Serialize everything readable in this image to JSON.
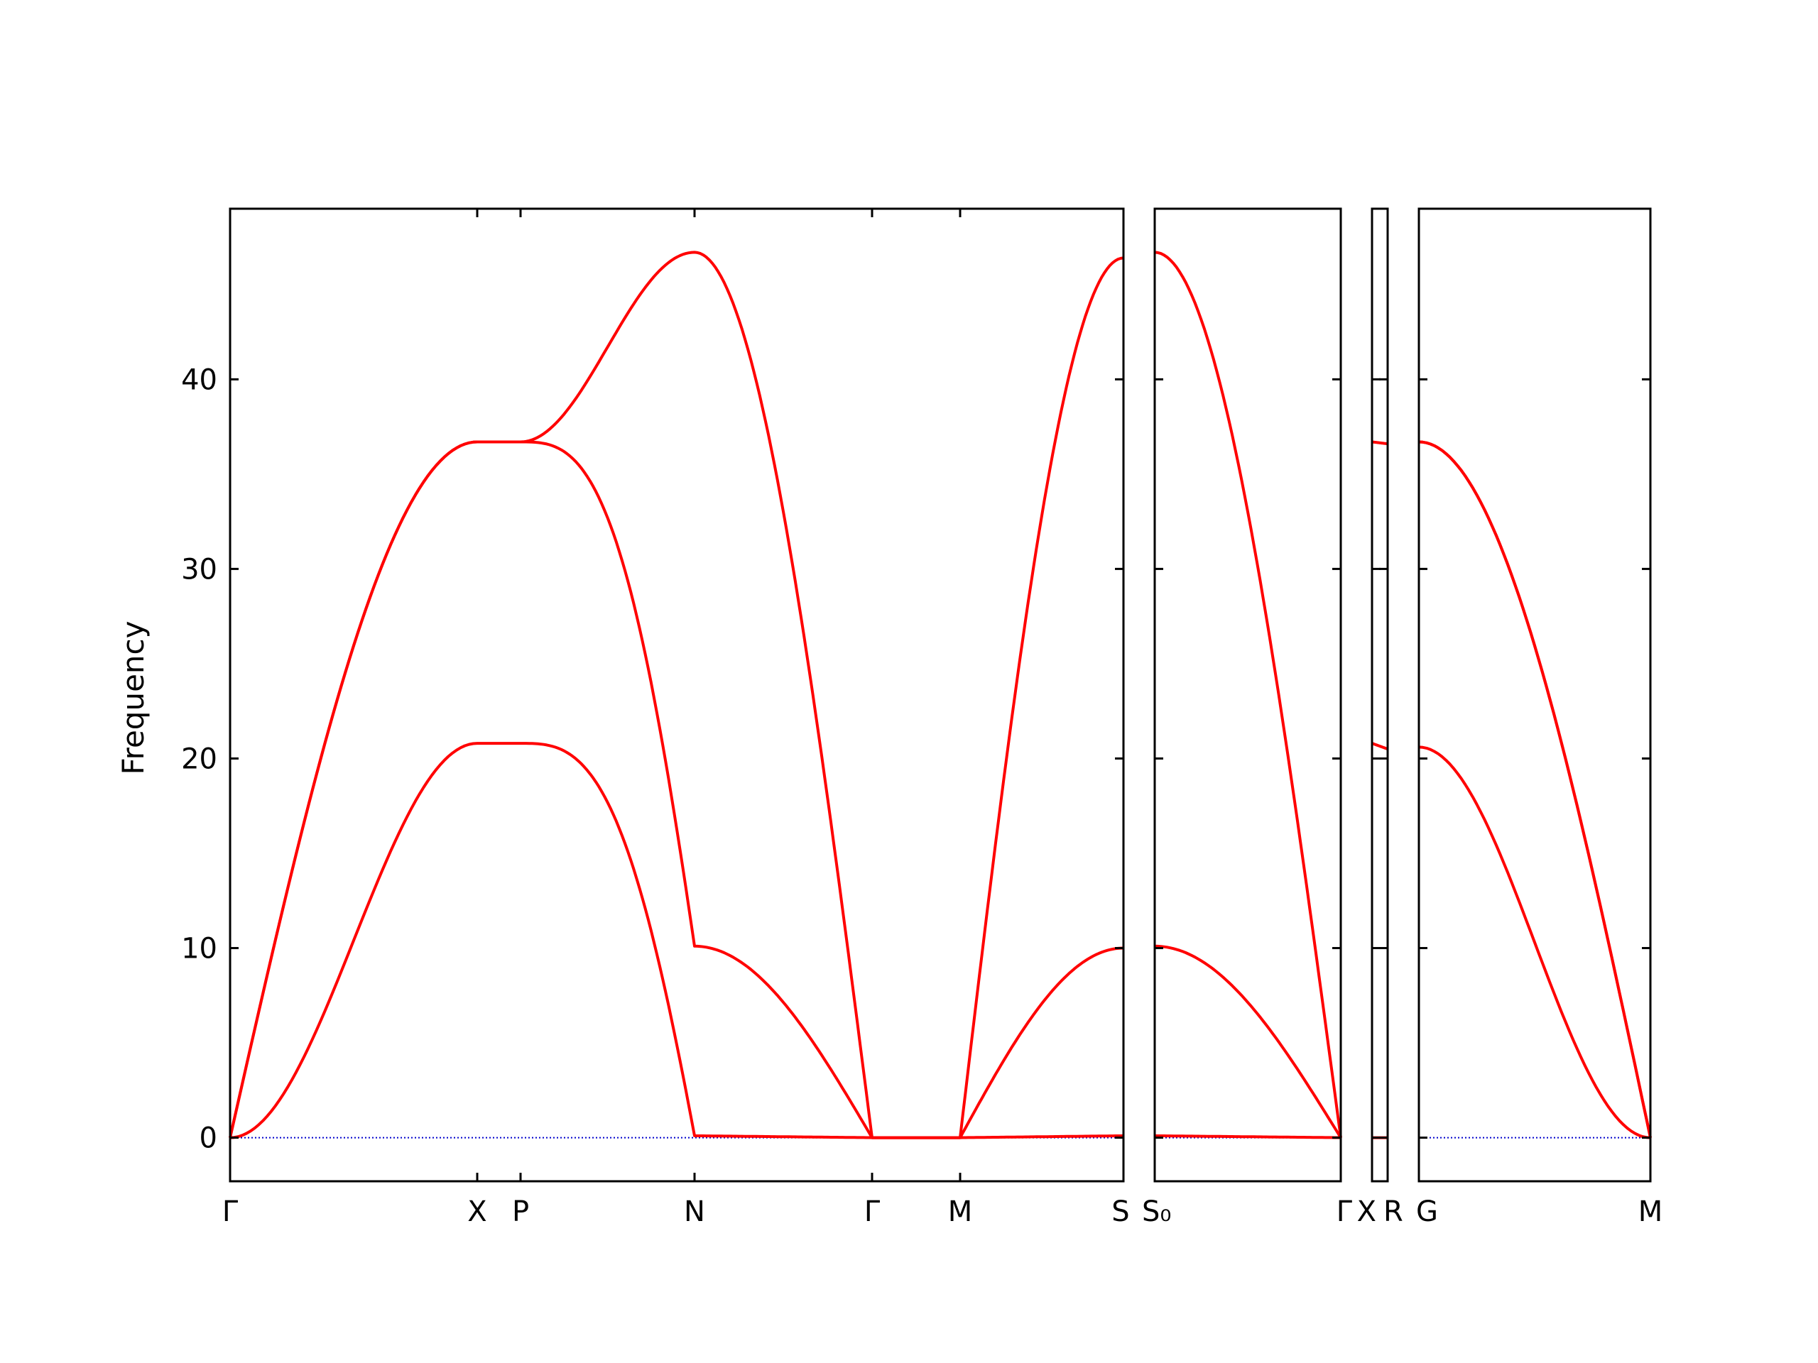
{
  "colors": {
    "band": "#ff0000",
    "zero_line": "#0000cc",
    "frame": "#000000",
    "background": "#ffffff"
  },
  "chart_data": {
    "type": "line",
    "title": "",
    "xlabel": "",
    "ylabel": "Frequency",
    "ylim": [
      -2.3,
      49
    ],
    "yticks": [
      0,
      10,
      20,
      30,
      40
    ],
    "grid": false,
    "legend": "none",
    "zero_reference_line": 0,
    "panels": [
      {
        "high_symmetry_points": [
          "Γ",
          "X",
          "P",
          "N",
          "Γ",
          "M",
          "S"
        ],
        "segments": [
          {
            "from": "Γ",
            "to": "X",
            "bands": [
              {
                "shape": "rise",
                "start": 0,
                "end": 36.7
              },
              {
                "shape": "rise",
                "start": 0,
                "end": 36.7
              },
              {
                "shape": "rise_s",
                "start": 0,
                "end": 20.8
              }
            ]
          },
          {
            "from": "X",
            "to": "P",
            "bands": [
              {
                "shape": "flat",
                "start": 36.7,
                "end": 36.7
              },
              {
                "shape": "flat",
                "start": 36.7,
                "end": 36.7
              },
              {
                "shape": "flat",
                "start": 20.8,
                "end": 20.8
              }
            ]
          },
          {
            "from": "P",
            "to": "N",
            "bands": [
              {
                "shape": "s_curve",
                "start": 36.7,
                "end": 46.7
              },
              {
                "shape": "fall_steep",
                "start": 36.7,
                "end": 10.1
              },
              {
                "shape": "fall_steep",
                "start": 20.8,
                "end": 0.1
              }
            ]
          },
          {
            "from": "N",
            "to": "Γ",
            "bands": [
              {
                "shape": "fall",
                "start": 46.7,
                "end": 0
              },
              {
                "shape": "fall",
                "start": 10.1,
                "end": 0
              },
              {
                "shape": "linear",
                "start": 0.1,
                "end": 0
              }
            ]
          },
          {
            "from": "Γ",
            "to": "M",
            "bands": [
              {
                "shape": "linear",
                "start": 0,
                "end": 0
              },
              {
                "shape": "linear",
                "start": 0,
                "end": 0
              },
              {
                "shape": "linear",
                "start": 0,
                "end": 0
              }
            ]
          },
          {
            "from": "M",
            "to": "S",
            "bands": [
              {
                "shape": "rise",
                "start": 0,
                "end": 46.4
              },
              {
                "shape": "rise",
                "start": 0,
                "end": 10.0
              },
              {
                "shape": "linear",
                "start": 0,
                "end": 0.1
              }
            ]
          }
        ]
      },
      {
        "high_symmetry_points": [
          "S₀",
          "Γ"
        ],
        "segments": [
          {
            "from": "S₀",
            "to": "Γ",
            "bands": [
              {
                "shape": "fall",
                "start": 46.7,
                "end": 0
              },
              {
                "shape": "fall",
                "start": 10.1,
                "end": 0
              },
              {
                "shape": "linear",
                "start": 0.1,
                "end": 0
              }
            ]
          }
        ]
      },
      {
        "high_symmetry_points": [
          "X",
          "R"
        ],
        "segments": [
          {
            "from": "X",
            "to": "R",
            "bands": [
              {
                "shape": "linear",
                "start": 36.7,
                "end": 36.6
              },
              {
                "shape": "linear",
                "start": 20.8,
                "end": 20.5
              },
              {
                "shape": "linear",
                "start": 0,
                "end": 0
              }
            ]
          }
        ]
      },
      {
        "high_symmetry_points": [
          "G",
          "M"
        ],
        "segments": [
          {
            "from": "G",
            "to": "M",
            "bands": [
              {
                "shape": "fall",
                "start": 36.7,
                "end": 0
              },
              {
                "shape": "fall",
                "start": 36.7,
                "end": 0
              },
              {
                "shape": "fall_s",
                "start": 20.6,
                "end": 0
              }
            ]
          }
        ]
      }
    ]
  }
}
